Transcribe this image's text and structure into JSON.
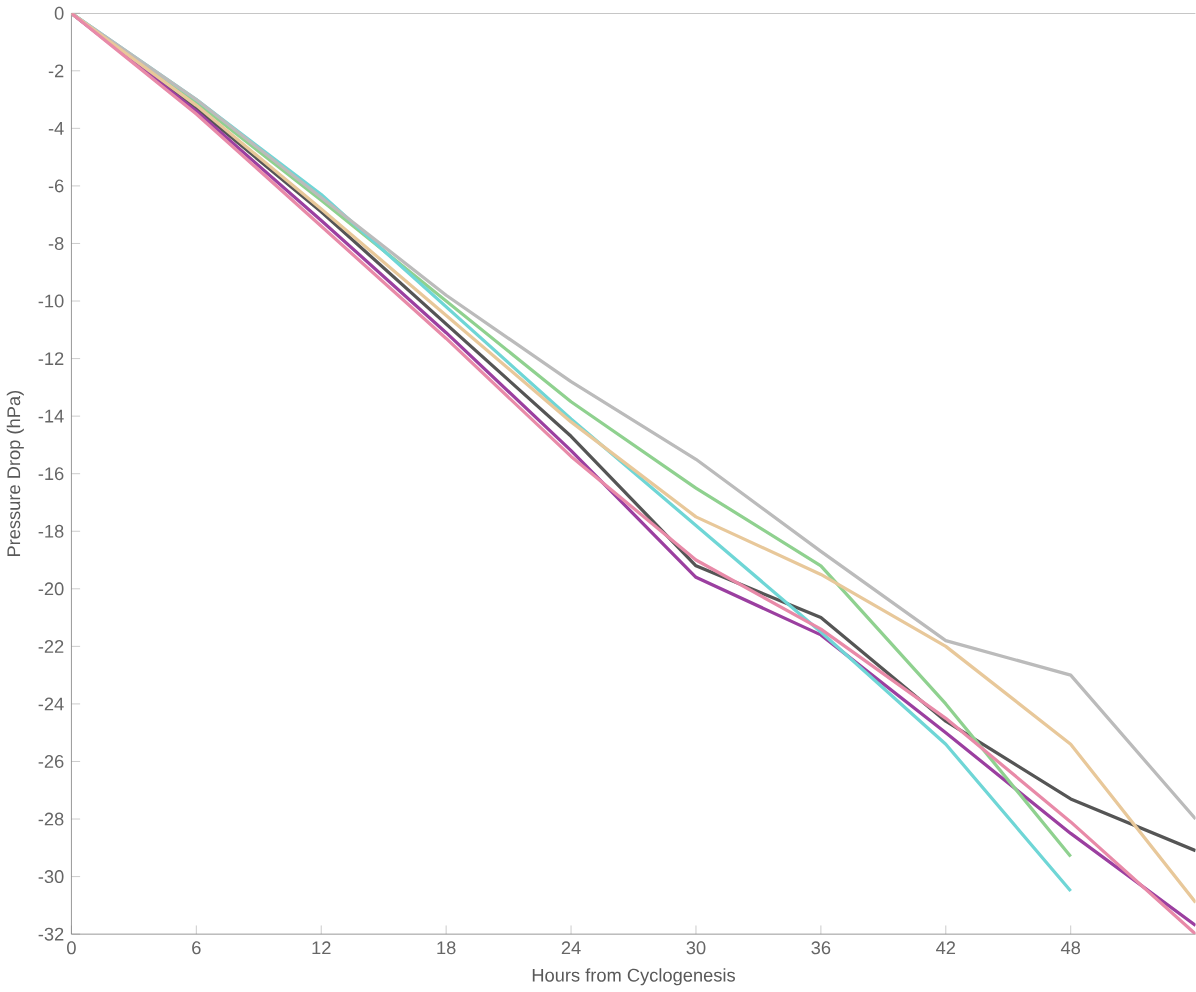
{
  "chart_data": {
    "type": "line",
    "xlabel": "Hours from Cyclogenesis",
    "ylabel": "Pressure Drop (hPa)",
    "x": [
      0,
      6,
      12,
      18,
      24,
      30,
      36,
      42,
      48,
      54
    ],
    "series": [
      {
        "color": "#555555",
        "values": [
          0,
          -3.3,
          -6.9,
          -10.8,
          -14.7,
          -19.2,
          -21,
          -24.6,
          -27.3,
          -29.1
        ]
      },
      {
        "color": "#9b3fa0",
        "values": [
          0,
          -3.4,
          -7.2,
          -11.1,
          -15.2,
          -19.6,
          -21.6,
          -25,
          -28.5,
          -31.7
        ]
      },
      {
        "color": "#8fd18f",
        "values": [
          0,
          -3.1,
          -6.5,
          -10,
          -13.5,
          -16.5,
          -19.2,
          -24,
          -29.3,
          null
        ]
      },
      {
        "color": "#6fd6d6",
        "values": [
          0,
          -3,
          -6.3,
          -10.2,
          -14.1,
          -17.8,
          -21.5,
          -25.4,
          -30.5,
          null
        ]
      },
      {
        "color": "#bbbbbb",
        "values": [
          0,
          -3,
          -6.4,
          -9.8,
          -12.8,
          -15.5,
          -18.7,
          -21.8,
          -23,
          -28
        ]
      },
      {
        "color": "#e8c89a",
        "values": [
          0,
          -3.2,
          -6.8,
          -10.5,
          -14.2,
          -17.5,
          -19.5,
          -22,
          -25.4,
          -30.9
        ]
      },
      {
        "color": "#e88aa8",
        "values": [
          0,
          -3.5,
          -7.4,
          -11.3,
          -15.4,
          -19,
          -21.4,
          -24.5,
          -28.1,
          -32
        ]
      }
    ],
    "xlim": [
      0,
      54
    ],
    "xticks": [
      0,
      6,
      12,
      18,
      24,
      30,
      36,
      42,
      48
    ],
    "ylim": [
      -32,
      0
    ],
    "yticks": [
      0,
      -2,
      -4,
      -6,
      -8,
      -10,
      -12,
      -14,
      -16,
      -18,
      -20,
      -22,
      -24,
      -26,
      -28,
      -30,
      -32
    ],
    "line_style": "solid"
  }
}
